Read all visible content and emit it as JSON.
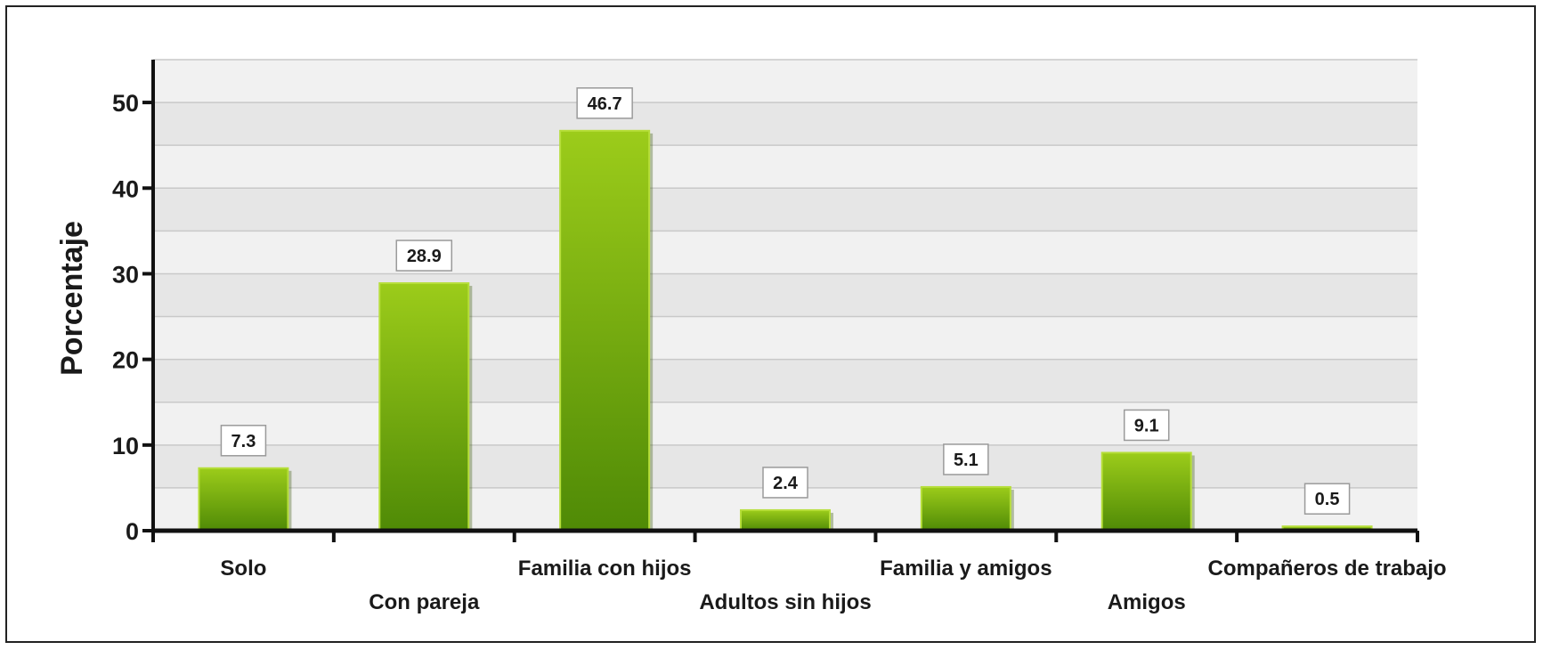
{
  "chart_data": {
    "type": "bar",
    "title": "",
    "xlabel": "",
    "ylabel": "Porcentaje",
    "ylim": [
      0,
      55
    ],
    "yticks": [
      0,
      10,
      20,
      30,
      40,
      50
    ],
    "grid": true,
    "categories": [
      "Solo",
      "Con pareja",
      "Familia con hijos",
      "Adultos sin hijos",
      "Familia y amigos",
      "Amigos",
      "Compañeros de trabajo"
    ],
    "values": [
      7.3,
      28.9,
      46.7,
      2.4,
      5.1,
      9.1,
      0.5
    ],
    "value_labels": [
      "7.3",
      "28.9",
      "46.7",
      "2.4",
      "5.1",
      "9.1",
      "0.5"
    ],
    "colors": {
      "bar_top": "#9ccc1a",
      "bar_bottom": "#4f8a06",
      "bar_edge": "#b6de3a",
      "band_light": "#f1f1f1",
      "band_dark": "#e6e6e6",
      "grid": "#c9c9c9",
      "axis": "#111111"
    }
  }
}
